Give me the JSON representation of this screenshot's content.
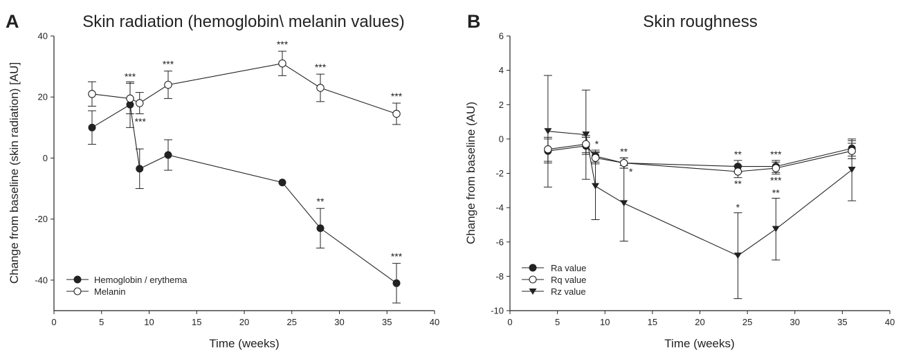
{
  "chart_data": [
    {
      "type": "line",
      "panel_label": "A",
      "title": "Skin radiation (hemoglobin\\ melanin values)",
      "xlabel": "Time (weeks)",
      "ylabel": "Change from baseline (skin radiation) [AU]",
      "xlim": [
        0,
        40
      ],
      "ylim": [
        -50,
        40
      ],
      "xticks": [
        0,
        5,
        10,
        15,
        20,
        25,
        30,
        35,
        40
      ],
      "yticks": [
        -40,
        -20,
        0,
        20,
        40
      ],
      "ytick_labels": [
        "-40",
        "-20",
        "0",
        "20",
        "40"
      ],
      "grid": false,
      "legend_position": "bottom-left",
      "series": [
        {
          "name": "Hemoglobin / erythema",
          "marker": "filled-circle",
          "x": [
            4,
            8,
            9,
            12,
            24,
            28,
            36
          ],
          "y": [
            10,
            17.5,
            -3.5,
            1,
            -8,
            -23,
            -41
          ],
          "err": [
            5.5,
            7.5,
            6.5,
            5,
            0,
            6.5,
            6.5
          ],
          "significance": [
            "",
            "",
            "",
            "",
            "",
            "**",
            "***"
          ]
        },
        {
          "name": "Melanin",
          "marker": "open-circle",
          "x": [
            4,
            8,
            9,
            12,
            24,
            28,
            36
          ],
          "y": [
            21,
            19.5,
            18,
            24,
            31,
            23,
            14.5
          ],
          "err": [
            4,
            5,
            3.5,
            4.5,
            4,
            4.5,
            3.5
          ],
          "significance": [
            "",
            "***",
            "***",
            "***",
            "***",
            "***",
            "***"
          ]
        }
      ]
    },
    {
      "type": "line",
      "panel_label": "B",
      "title": "Skin roughness",
      "xlabel": "Time (weeks)",
      "ylabel": "Change from baseline (AU)",
      "xlim": [
        0,
        40
      ],
      "ylim": [
        -10,
        6
      ],
      "xticks": [
        0,
        5,
        10,
        15,
        20,
        25,
        30,
        35,
        40
      ],
      "yticks": [
        -10,
        -8,
        -6,
        -4,
        -2,
        0,
        2,
        4,
        6
      ],
      "ytick_labels": [
        "-10",
        "-8",
        "-6",
        "-4",
        "-2",
        "0",
        "2",
        "4",
        "6"
      ],
      "grid": false,
      "legend_position": "bottom-left",
      "series": [
        {
          "name": "Ra value",
          "marker": "filled-circle",
          "x": [
            4,
            8,
            9,
            12,
            24,
            28,
            36
          ],
          "y": [
            -0.7,
            -0.4,
            -1.0,
            -1.4,
            -1.6,
            -1.6,
            -0.55
          ],
          "err": [
            0.7,
            0.5,
            0.35,
            0.3,
            0.35,
            0.35,
            0.45
          ],
          "significance": [
            "",
            "",
            "*",
            "**",
            "**",
            "***",
            ""
          ]
        },
        {
          "name": "Rq value",
          "marker": "open-circle",
          "x": [
            4,
            8,
            9,
            12,
            24,
            28,
            36
          ],
          "y": [
            -0.6,
            -0.3,
            -1.1,
            -1.4,
            -1.9,
            -1.7,
            -0.7
          ],
          "err": [
            0.7,
            0.5,
            0.35,
            0.3,
            0.35,
            0.35,
            0.45
          ],
          "significance": [
            "",
            "",
            "",
            "*",
            "**",
            "***",
            ""
          ]
        },
        {
          "name": "Rz value",
          "marker": "filled-triangle-down",
          "x": [
            4,
            8,
            9,
            12,
            24,
            28,
            36
          ],
          "y": [
            0.45,
            0.25,
            -2.75,
            -3.75,
            -6.8,
            -5.25,
            -1.8
          ],
          "err": [
            3.25,
            2.6,
            1.95,
            2.2,
            2.5,
            1.8,
            1.8
          ],
          "significance": [
            "",
            "",
            "",
            "",
            "*",
            "**",
            ""
          ]
        }
      ]
    }
  ]
}
